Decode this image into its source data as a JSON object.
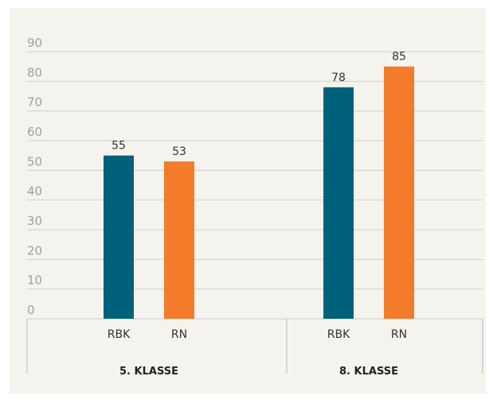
{
  "chart_data": {
    "type": "bar",
    "categories": [
      "5. KLASSE",
      "8. KLASSE"
    ],
    "series": [
      {
        "name": "RBK",
        "color": "#00627a",
        "values": [
          55,
          78
        ]
      },
      {
        "name": "RN",
        "color": "#f47b2a",
        "values": [
          53,
          85
        ]
      }
    ],
    "ylim": [
      0,
      90
    ],
    "yticks": [
      0,
      10,
      20,
      30,
      40,
      50,
      60,
      70,
      80,
      90
    ],
    "grid": true
  }
}
